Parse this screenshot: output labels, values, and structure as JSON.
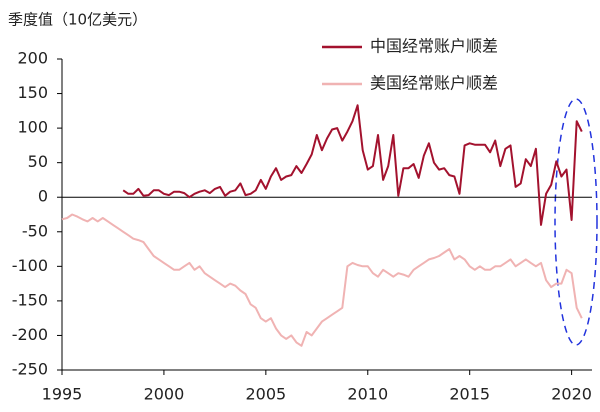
{
  "chart_data": {
    "type": "line",
    "title": "季度值（10亿美元）",
    "x": [
      1995,
      1995.25,
      1995.5,
      1995.75,
      1996,
      1996.25,
      1996.5,
      1996.75,
      1997,
      1997.25,
      1997.5,
      1997.75,
      1998,
      1998.25,
      1998.5,
      1998.75,
      1999,
      1999.25,
      1999.5,
      1999.75,
      2000,
      2000.25,
      2000.5,
      2000.75,
      2001,
      2001.25,
      2001.5,
      2001.75,
      2002,
      2002.25,
      2002.5,
      2002.75,
      2003,
      2003.25,
      2003.5,
      2003.75,
      2004,
      2004.25,
      2004.5,
      2004.75,
      2005,
      2005.25,
      2005.5,
      2005.75,
      2006,
      2006.25,
      2006.5,
      2006.75,
      2007,
      2007.25,
      2007.5,
      2007.75,
      2008,
      2008.25,
      2008.5,
      2008.75,
      2009,
      2009.25,
      2009.5,
      2009.75,
      2010,
      2010.25,
      2010.5,
      2010.75,
      2011,
      2011.25,
      2011.5,
      2011.75,
      2012,
      2012.25,
      2012.5,
      2012.75,
      2013,
      2013.25,
      2013.5,
      2013.75,
      2014,
      2014.25,
      2014.5,
      2014.75,
      2015,
      2015.25,
      2015.5,
      2015.75,
      2016,
      2016.25,
      2016.5,
      2016.75,
      2017,
      2017.25,
      2017.5,
      2017.75,
      2018,
      2018.25,
      2018.5,
      2018.75,
      2019,
      2019.25,
      2019.5,
      2019.75,
      2020,
      2020.25,
      2020.5
    ],
    "series": [
      {
        "name": "中国经常账户顺差",
        "color": "#a3122e",
        "values": [
          null,
          null,
          null,
          null,
          null,
          null,
          null,
          null,
          null,
          null,
          null,
          null,
          10,
          5,
          5,
          12,
          2,
          3,
          10,
          10,
          5,
          3,
          8,
          8,
          6,
          0,
          5,
          8,
          10,
          6,
          12,
          15,
          2,
          8,
          10,
          20,
          3,
          5,
          10,
          25,
          12,
          30,
          42,
          25,
          30,
          32,
          45,
          35,
          48,
          62,
          90,
          68,
          85,
          98,
          100,
          82,
          95,
          110,
          133,
          68,
          40,
          45,
          90,
          25,
          45,
          90,
          2,
          42,
          42,
          48,
          28,
          60,
          78,
          50,
          40,
          42,
          32,
          30,
          5,
          75,
          78,
          76,
          76,
          76,
          65,
          82,
          45,
          70,
          75,
          15,
          20,
          55,
          45,
          70,
          -40,
          5,
          18,
          52,
          30,
          40,
          -33,
          110,
          95
        ]
      },
      {
        "name": "美国经常账户顺差",
        "color": "#f0b3b3",
        "values": [
          -32,
          -30,
          -25,
          -28,
          -32,
          -35,
          -30,
          -35,
          -30,
          -35,
          -40,
          -45,
          -50,
          -55,
          -60,
          -62,
          -65,
          -75,
          -85,
          -90,
          -95,
          -100,
          -105,
          -105,
          -100,
          -95,
          -105,
          -100,
          -110,
          -115,
          -120,
          -125,
          -130,
          -125,
          -128,
          -135,
          -140,
          -155,
          -160,
          -175,
          -180,
          -175,
          -190,
          -200,
          -205,
          -200,
          -210,
          -215,
          -195,
          -200,
          -190,
          -180,
          -175,
          -170,
          -165,
          -160,
          -100,
          -95,
          -98,
          -100,
          -100,
          -110,
          -115,
          -105,
          -110,
          -115,
          -110,
          -112,
          -115,
          -105,
          -100,
          -95,
          -90,
          -88,
          -85,
          -80,
          -75,
          -90,
          -85,
          -90,
          -100,
          -105,
          -100,
          -105,
          -105,
          -100,
          -100,
          -95,
          -90,
          -100,
          -95,
          -90,
          -95,
          -100,
          -95,
          -120,
          -130,
          -125,
          -125,
          -105,
          -110,
          -160,
          -175
        ]
      }
    ],
    "xlim": [
      1995,
      2021
    ],
    "xticks": [
      1995,
      2000,
      2005,
      2010,
      2015,
      2020
    ],
    "ylim": [
      -250,
      200
    ],
    "yticks": [
      -250,
      -200,
      -150,
      -100,
      -50,
      0,
      50,
      100,
      150,
      200
    ],
    "legend": "upper right"
  }
}
